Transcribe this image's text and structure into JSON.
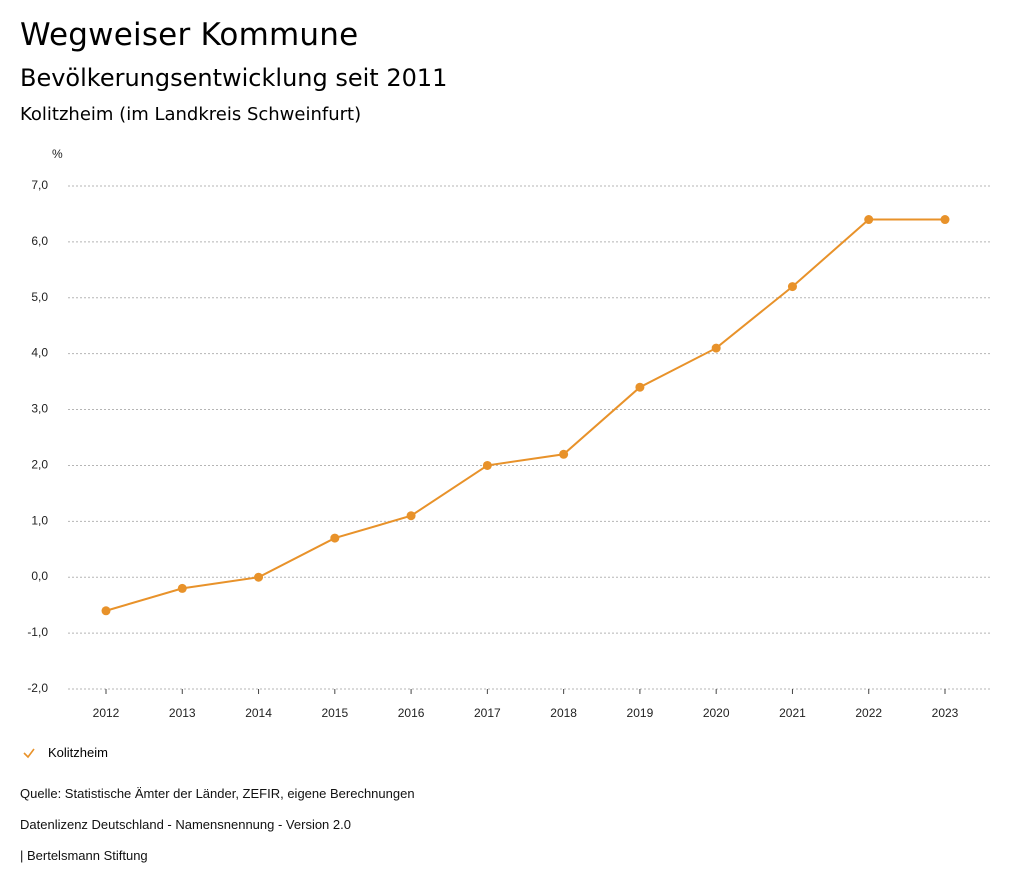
{
  "header": {
    "title": "Wegweiser Kommune",
    "subtitle": "Bevölkerungsentwicklung seit 2011",
    "region": "Kolitzheim (im Landkreis Schweinfurt)"
  },
  "chart_data": {
    "type": "line",
    "ylabel": "%",
    "xlabel": "",
    "ylim": [
      -2.0,
      7.0
    ],
    "yticks": [
      "7,0",
      "6,0",
      "5,0",
      "4,0",
      "3,0",
      "2,0",
      "1,0",
      "0,0",
      "-1,0",
      "-2,0"
    ],
    "ytick_values": [
      7,
      6,
      5,
      4,
      3,
      2,
      1,
      0,
      -1,
      -2
    ],
    "categories": [
      "2012",
      "2013",
      "2014",
      "2015",
      "2016",
      "2017",
      "2018",
      "2019",
      "2020",
      "2021",
      "2022",
      "2023"
    ],
    "series": [
      {
        "name": "Kolitzheim",
        "color": "#e8922a",
        "values": [
          -0.6,
          -0.2,
          0.0,
          0.7,
          1.1,
          2.0,
          2.2,
          3.4,
          4.1,
          5.2,
          6.4,
          6.4
        ]
      }
    ],
    "grid": true,
    "legend": "bottom-left"
  },
  "footer": {
    "source": "Quelle: Statistische Ämter der Länder, ZEFIR, eigene Berechnungen",
    "license": "Datenlizenz Deutschland - Namensnennung - Version 2.0",
    "credit": "| Bertelsmann Stiftung"
  }
}
